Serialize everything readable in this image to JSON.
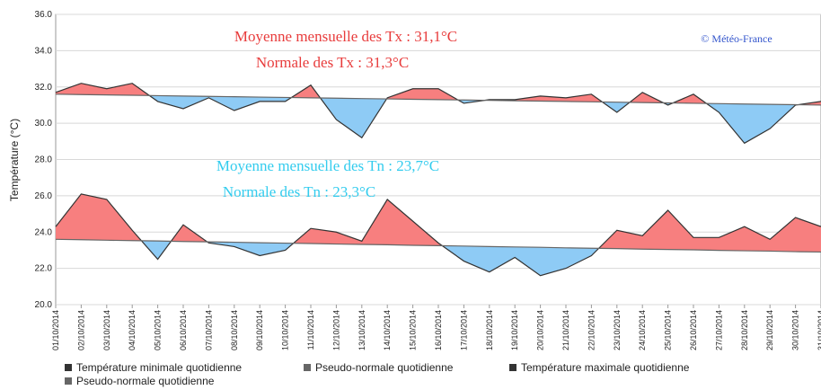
{
  "chart_data": {
    "type": "line",
    "y_label": "Température (°C)",
    "annotations": [
      {
        "text": "Moyenne mensuelle des Tx : 31,1°C",
        "color": "#e83c3c"
      },
      {
        "text": "Normale des Tx : 31,3°C",
        "color": "#e83c3c"
      },
      {
        "text": "Moyenne mensuelle des Tn : 23,7°C",
        "color": "#33ccee"
      },
      {
        "text": "Normale des Tn : 23,3°C",
        "color": "#33ccee"
      },
      {
        "text": "© Météo-France",
        "color": "#3355cc"
      }
    ],
    "x": [
      "01/10/2014",
      "02/10/2014",
      "03/10/2014",
      "04/10/2014",
      "05/10/2014",
      "06/10/2014",
      "07/10/2014",
      "08/10/2014",
      "09/10/2014",
      "10/10/2014",
      "11/10/2014",
      "12/10/2014",
      "13/10/2014",
      "14/10/2014",
      "15/10/2014",
      "16/10/2014",
      "17/10/2014",
      "18/10/2014",
      "19/10/2014",
      "20/10/2014",
      "21/10/2014",
      "22/10/2014",
      "23/10/2014",
      "24/10/2014",
      "25/10/2014",
      "26/10/2014",
      "27/10/2014",
      "28/10/2014",
      "29/10/2014",
      "30/10/2014",
      "31/10/2014"
    ],
    "series": [
      {
        "name": "Température minimale quotidienne",
        "color": "#333333",
        "values": [
          24.3,
          26.1,
          25.8,
          24.1,
          22.5,
          24.4,
          23.4,
          23.2,
          22.7,
          23.0,
          24.2,
          24.0,
          23.5,
          25.8,
          24.6,
          23.4,
          22.4,
          21.8,
          22.6,
          21.6,
          22.0,
          22.7,
          24.1,
          23.8,
          25.2,
          23.7,
          23.7,
          24.3,
          23.6,
          24.8,
          24.3
        ]
      },
      {
        "name": "Pseudo-normale quotidienne",
        "color": "#666666",
        "values": [
          23.6,
          23.58,
          23.55,
          23.53,
          23.51,
          23.48,
          23.46,
          23.44,
          23.41,
          23.39,
          23.37,
          23.34,
          23.32,
          23.3,
          23.27,
          23.25,
          23.23,
          23.2,
          23.18,
          23.16,
          23.13,
          23.11,
          23.09,
          23.06,
          23.04,
          23.02,
          22.99,
          22.97,
          22.95,
          22.92,
          22.9
        ]
      },
      {
        "name": "Température maximale quotidienne",
        "color": "#333333",
        "values": [
          31.7,
          32.2,
          31.9,
          32.2,
          31.2,
          30.8,
          31.4,
          30.7,
          31.2,
          31.2,
          32.1,
          30.2,
          29.2,
          31.4,
          31.9,
          31.9,
          31.1,
          31.3,
          31.3,
          31.5,
          31.4,
          31.6,
          30.6,
          31.7,
          31.0,
          31.6,
          30.6,
          28.9,
          29.7,
          31.0,
          31.2
        ]
      },
      {
        "name": "Pseudo-normale quotidienne",
        "color": "#666666",
        "values": [
          31.6,
          31.58,
          31.56,
          31.54,
          31.52,
          31.5,
          31.48,
          31.46,
          31.44,
          31.42,
          31.4,
          31.38,
          31.36,
          31.34,
          31.32,
          31.3,
          31.28,
          31.26,
          31.24,
          31.22,
          31.2,
          31.18,
          31.16,
          31.14,
          31.12,
          31.1,
          31.08,
          31.06,
          31.04,
          31.02,
          31.0
        ]
      }
    ],
    "fill_above": "#f77f7f",
    "fill_below": "#8ecbf5",
    "ylim": [
      20,
      36
    ],
    "yticks": [
      {
        "value": 20,
        "label": "20.0"
      },
      {
        "value": 22,
        "label": "22.0"
      },
      {
        "value": 24,
        "label": "24.0"
      },
      {
        "value": 26,
        "label": "26.0"
      },
      {
        "value": 28,
        "label": "28.0"
      },
      {
        "value": 30,
        "label": "30.0"
      },
      {
        "value": 32,
        "label": "32.0"
      },
      {
        "value": 34,
        "label": "34.0"
      },
      {
        "value": 36,
        "label": "36.0"
      }
    ],
    "grid": true
  }
}
